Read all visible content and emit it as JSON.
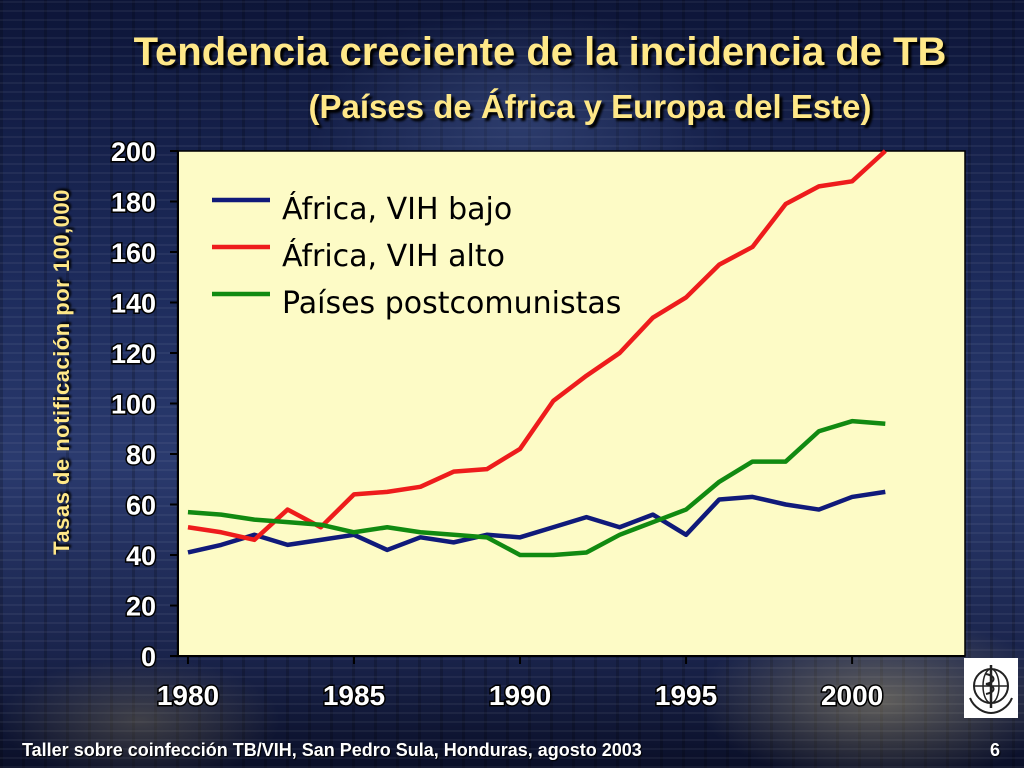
{
  "title": "Tendencia creciente de la incidencia de TB",
  "subtitle": "(Países de África y Europa del Este)",
  "footer": "Taller sobre coinfección TB/VIH, San Pedro Sula, Honduras, agosto 2003",
  "page_number": "6",
  "logo_icon": "who-emblem-icon",
  "colors": {
    "plot_background": "#fdfbc6",
    "title": "#ffe888",
    "africa_low_hiv": "#101a7a",
    "africa_high_hiv": "#ee1c1c",
    "postcommunist": "#118a11"
  },
  "chart_data": {
    "type": "line",
    "title": "Tendencia creciente de la incidencia de TB",
    "subtitle": "(Países de África y Europa del Este)",
    "xlabel": "",
    "ylabel": "Tasas de notificación por 100,000",
    "xlim": [
      1979.7,
      2003.4
    ],
    "ylim": [
      0,
      200
    ],
    "x_ticks": [
      "1980",
      "1985",
      "1990",
      "1995",
      "2000"
    ],
    "y_ticks": [
      "0",
      "20",
      "40",
      "60",
      "80",
      "100",
      "120",
      "140",
      "160",
      "180",
      "200"
    ],
    "grid": false,
    "legend_position": "top-left",
    "x": [
      1980,
      1981,
      1982,
      1983,
      1984,
      1985,
      1986,
      1987,
      1988,
      1989,
      1990,
      1991,
      1992,
      1993,
      1994,
      1995,
      1996,
      1997,
      1998,
      1999,
      2000,
      2001
    ],
    "series": [
      {
        "name": "África, VIH bajo",
        "color": "#101a7a",
        "values": [
          41,
          44,
          48,
          44,
          46,
          48,
          42,
          47,
          45,
          48,
          47,
          51,
          55,
          51,
          56,
          48,
          62,
          63,
          60,
          58,
          63,
          65
        ]
      },
      {
        "name": "África, VIH alto",
        "color": "#ee1c1c",
        "values": [
          51,
          49,
          46,
          58,
          51,
          64,
          65,
          67,
          73,
          74,
          82,
          101,
          111,
          120,
          134,
          142,
          155,
          162,
          179,
          186,
          188,
          201
        ]
      },
      {
        "name": "Países postcomunistas",
        "color": "#118a11",
        "values": [
          57,
          56,
          54,
          53,
          52,
          49,
          51,
          49,
          48,
          47,
          40,
          40,
          41,
          48,
          53,
          58,
          69,
          77,
          77,
          89,
          93,
          92
        ]
      }
    ]
  }
}
